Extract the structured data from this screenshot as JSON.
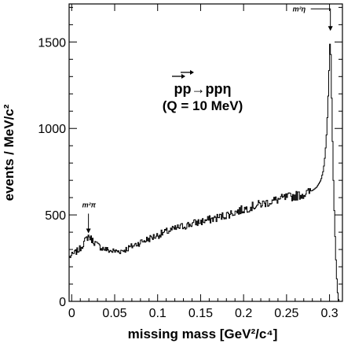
{
  "chart_data": {
    "type": "line",
    "xlabel": "missing mass [GeV²/c⁴]",
    "ylabel": "events / MeV/c²",
    "xlim": [
      -0.003,
      0.315
    ],
    "ylim": [
      0,
      1720
    ],
    "x_ticks": [
      0,
      0.05,
      0.1,
      0.15,
      0.2,
      0.25,
      0.3
    ],
    "x_tick_labels": [
      "0",
      "0.05",
      "0.1",
      "0.15",
      "0.2",
      "0.25",
      "0.3"
    ],
    "y_ticks": [
      0,
      500,
      1000,
      1500
    ],
    "y_tick_labels": [
      "0",
      "500",
      "1000",
      "1500"
    ],
    "grid": false,
    "legend": "none",
    "reaction_label": "pp→ppη",
    "q_label": "(Q = 10 MeV)",
    "annotations": [
      {
        "text": "m²π",
        "x": 0.0195,
        "y": 380
      },
      {
        "text": "m²η",
        "x": 0.301,
        "y": 1555
      }
    ],
    "series": [
      {
        "points": [
          [
            -0.003,
            255
          ],
          [
            0.0,
            265
          ],
          [
            0.005,
            285
          ],
          [
            0.01,
            305
          ],
          [
            0.015,
            345
          ],
          [
            0.0195,
            378
          ],
          [
            0.024,
            355
          ],
          [
            0.03,
            325
          ],
          [
            0.035,
            310
          ],
          [
            0.04,
            300
          ],
          [
            0.045,
            292
          ],
          [
            0.05,
            290
          ],
          [
            0.055,
            290
          ],
          [
            0.06,
            295
          ],
          [
            0.065,
            305
          ],
          [
            0.07,
            318
          ],
          [
            0.075,
            330
          ],
          [
            0.08,
            342
          ],
          [
            0.085,
            352
          ],
          [
            0.09,
            362
          ],
          [
            0.095,
            372
          ],
          [
            0.1,
            382
          ],
          [
            0.105,
            392
          ],
          [
            0.11,
            402
          ],
          [
            0.115,
            410
          ],
          [
            0.12,
            418
          ],
          [
            0.125,
            428
          ],
          [
            0.13,
            435
          ],
          [
            0.135,
            442
          ],
          [
            0.14,
            448
          ],
          [
            0.145,
            455
          ],
          [
            0.15,
            460
          ],
          [
            0.155,
            466
          ],
          [
            0.16,
            472
          ],
          [
            0.165,
            478
          ],
          [
            0.17,
            485
          ],
          [
            0.175,
            492
          ],
          [
            0.18,
            500
          ],
          [
            0.185,
            508
          ],
          [
            0.19,
            516
          ],
          [
            0.195,
            524
          ],
          [
            0.2,
            532
          ],
          [
            0.205,
            540
          ],
          [
            0.21,
            548
          ],
          [
            0.215,
            556
          ],
          [
            0.22,
            562
          ],
          [
            0.225,
            568
          ],
          [
            0.23,
            575
          ],
          [
            0.235,
            582
          ],
          [
            0.24,
            588
          ],
          [
            0.245,
            594
          ],
          [
            0.25,
            600
          ],
          [
            0.255,
            605
          ],
          [
            0.26,
            610
          ],
          [
            0.265,
            615
          ],
          [
            0.27,
            620
          ],
          [
            0.275,
            628
          ],
          [
            0.28,
            640
          ],
          [
            0.285,
            660
          ],
          [
            0.29,
            700
          ],
          [
            0.293,
            760
          ],
          [
            0.295,
            850
          ],
          [
            0.297,
            1000
          ],
          [
            0.299,
            1250
          ],
          [
            0.3,
            1420
          ],
          [
            0.301,
            1555
          ],
          [
            0.302,
            1300
          ],
          [
            0.303,
            1050
          ],
          [
            0.304,
            800
          ],
          [
            0.305,
            600
          ],
          [
            0.306,
            450
          ],
          [
            0.307,
            300
          ],
          [
            0.308,
            180
          ],
          [
            0.309,
            80
          ],
          [
            0.31,
            20
          ],
          [
            0.311,
            0
          ]
        ]
      }
    ]
  }
}
